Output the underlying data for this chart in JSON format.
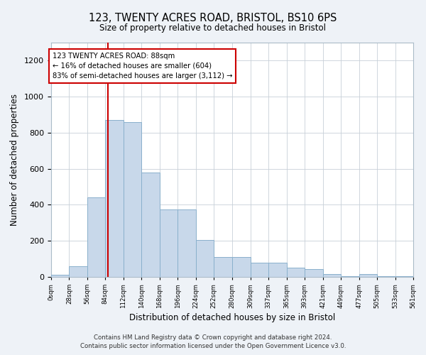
{
  "title": "123, TWENTY ACRES ROAD, BRISTOL, BS10 6PS",
  "subtitle": "Size of property relative to detached houses in Bristol",
  "xlabel": "Distribution of detached houses by size in Bristol",
  "ylabel": "Number of detached properties",
  "bar_color": "#c8d8ea",
  "bar_edge_color": "#8ab0cc",
  "vline_color": "#cc0000",
  "vline_x": 88,
  "annotation_text": "123 TWENTY ACRES ROAD: 88sqm\n← 16% of detached houses are smaller (604)\n83% of semi-detached houses are larger (3,112) →",
  "bin_edges": [
    0,
    28,
    56,
    84,
    112,
    140,
    168,
    196,
    224,
    252,
    280,
    309,
    337,
    365,
    393,
    421,
    449,
    477,
    505,
    533,
    561
  ],
  "bar_heights": [
    10,
    60,
    440,
    870,
    860,
    580,
    375,
    375,
    205,
    110,
    110,
    80,
    80,
    50,
    45,
    17,
    5,
    15,
    5,
    5
  ],
  "ylim": [
    0,
    1300
  ],
  "yticks": [
    0,
    200,
    400,
    600,
    800,
    1000,
    1200
  ],
  "footer_text": "Contains HM Land Registry data © Crown copyright and database right 2024.\nContains public sector information licensed under the Open Government Licence v3.0.",
  "background_color": "#eef2f7",
  "plot_bg_color": "#ffffff",
  "grid_color": "#c8d0d8"
}
